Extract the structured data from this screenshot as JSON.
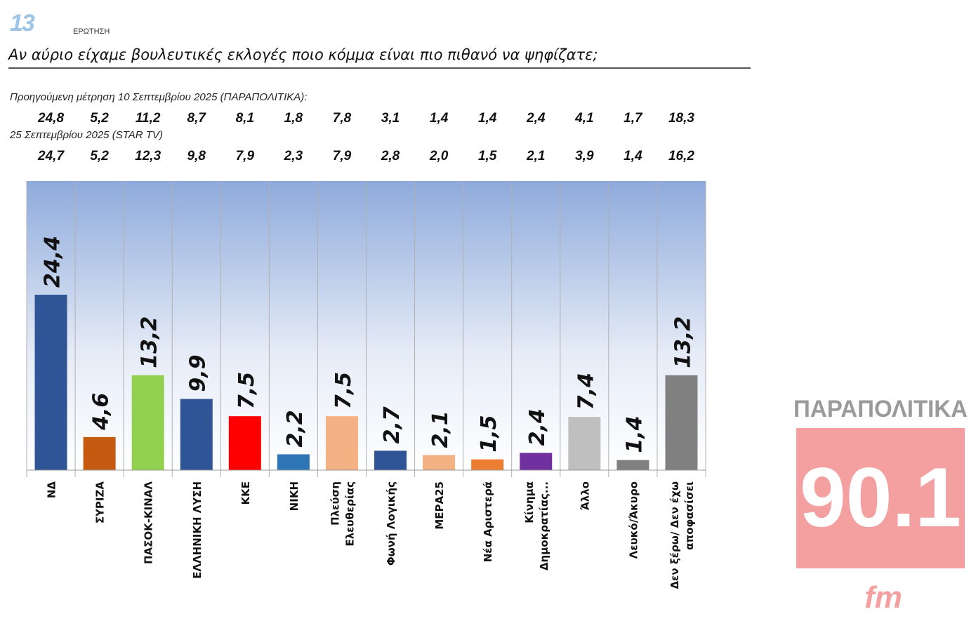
{
  "header": {
    "question_number": "13",
    "question_word": "ΕΡΩΤΗΣΗ",
    "title": "Αν αύριο είχαμε βουλευτικές εκλογές ποιο κόμμα είναι πιο πιθανό να ψηφίζατε;"
  },
  "previous": [
    {
      "label": "Προηγούμενη μέτρηση 10 Σεπτεμβρίου 2025 (ΠΑΡΑΠΟΛΙΤΙΚΑ):",
      "values": [
        "24,8",
        "5,2",
        "11,2",
        "8,7",
        "8,1",
        "1,8",
        "7,8",
        "3,1",
        "1,4",
        "1,4",
        "2,4",
        "4,1",
        "1,7",
        "18,3"
      ]
    },
    {
      "label": "25 Σεπτεμβρίου 2025 (STAR TV)",
      "values": [
        "24,7",
        "5,2",
        "12,3",
        "9,8",
        "7,9",
        "2,3",
        "7,9",
        "2,8",
        "2,0",
        "1,5",
        "2,1",
        "3,9",
        "1,4",
        "16,2"
      ]
    }
  ],
  "chart_data": {
    "type": "bar",
    "title": "Αν αύριο είχαμε βουλευτικές εκλογές ποιο κόμμα είναι πιο πιθανό να ψηφίζατε;",
    "categories": [
      [
        "ΝΔ"
      ],
      [
        "ΣΥΡΙΖΑ"
      ],
      [
        "ΠΑΣΟΚ-ΚΙΝΑΛ"
      ],
      [
        "ΕΛΛΗΝΙΚΗ ΛΥΣΗ"
      ],
      [
        "ΚΚΕ"
      ],
      [
        "ΝΙΚΗ"
      ],
      [
        "Πλεύση",
        "Ελευθερίας"
      ],
      [
        "Φωνή Λογικής"
      ],
      [
        "ΜΕΡΑ25"
      ],
      [
        "Νέα Αριστερά"
      ],
      [
        "Κίνημα",
        "Δημοκρατίας..."
      ],
      [
        "Άλλο"
      ],
      [
        "Λευκό/Άκυρο"
      ],
      [
        "Δεν ξέρω/ Δεν έχω",
        "αποφασίσει"
      ]
    ],
    "values": [
      24.4,
      4.6,
      13.2,
      9.9,
      7.5,
      2.2,
      7.5,
      2.7,
      2.1,
      1.5,
      2.4,
      7.4,
      1.4,
      13.2
    ],
    "value_labels": [
      "24,4",
      "4,6",
      "13,2",
      "9,9",
      "7,5",
      "2,2",
      "7,5",
      "2,7",
      "2,1",
      "1,5",
      "2,4",
      "7,4",
      "1,4",
      "13,2"
    ],
    "colors": [
      "#2f5597",
      "#c55a11",
      "#92d050",
      "#2f5597",
      "#ff0000",
      "#2e75b6",
      "#f4b183",
      "#2f5597",
      "#f4b183",
      "#ed7d31",
      "#7030a0",
      "#bfbfbf",
      "#808080",
      "#808080"
    ],
    "ylim": [
      0,
      40
    ],
    "xlabel": "",
    "ylabel": ""
  },
  "logo": {
    "line1": "ΠΑΡΑΠΟΛΙΤΙΚΑ",
    "line2": "90.1",
    "line3": "fm"
  }
}
